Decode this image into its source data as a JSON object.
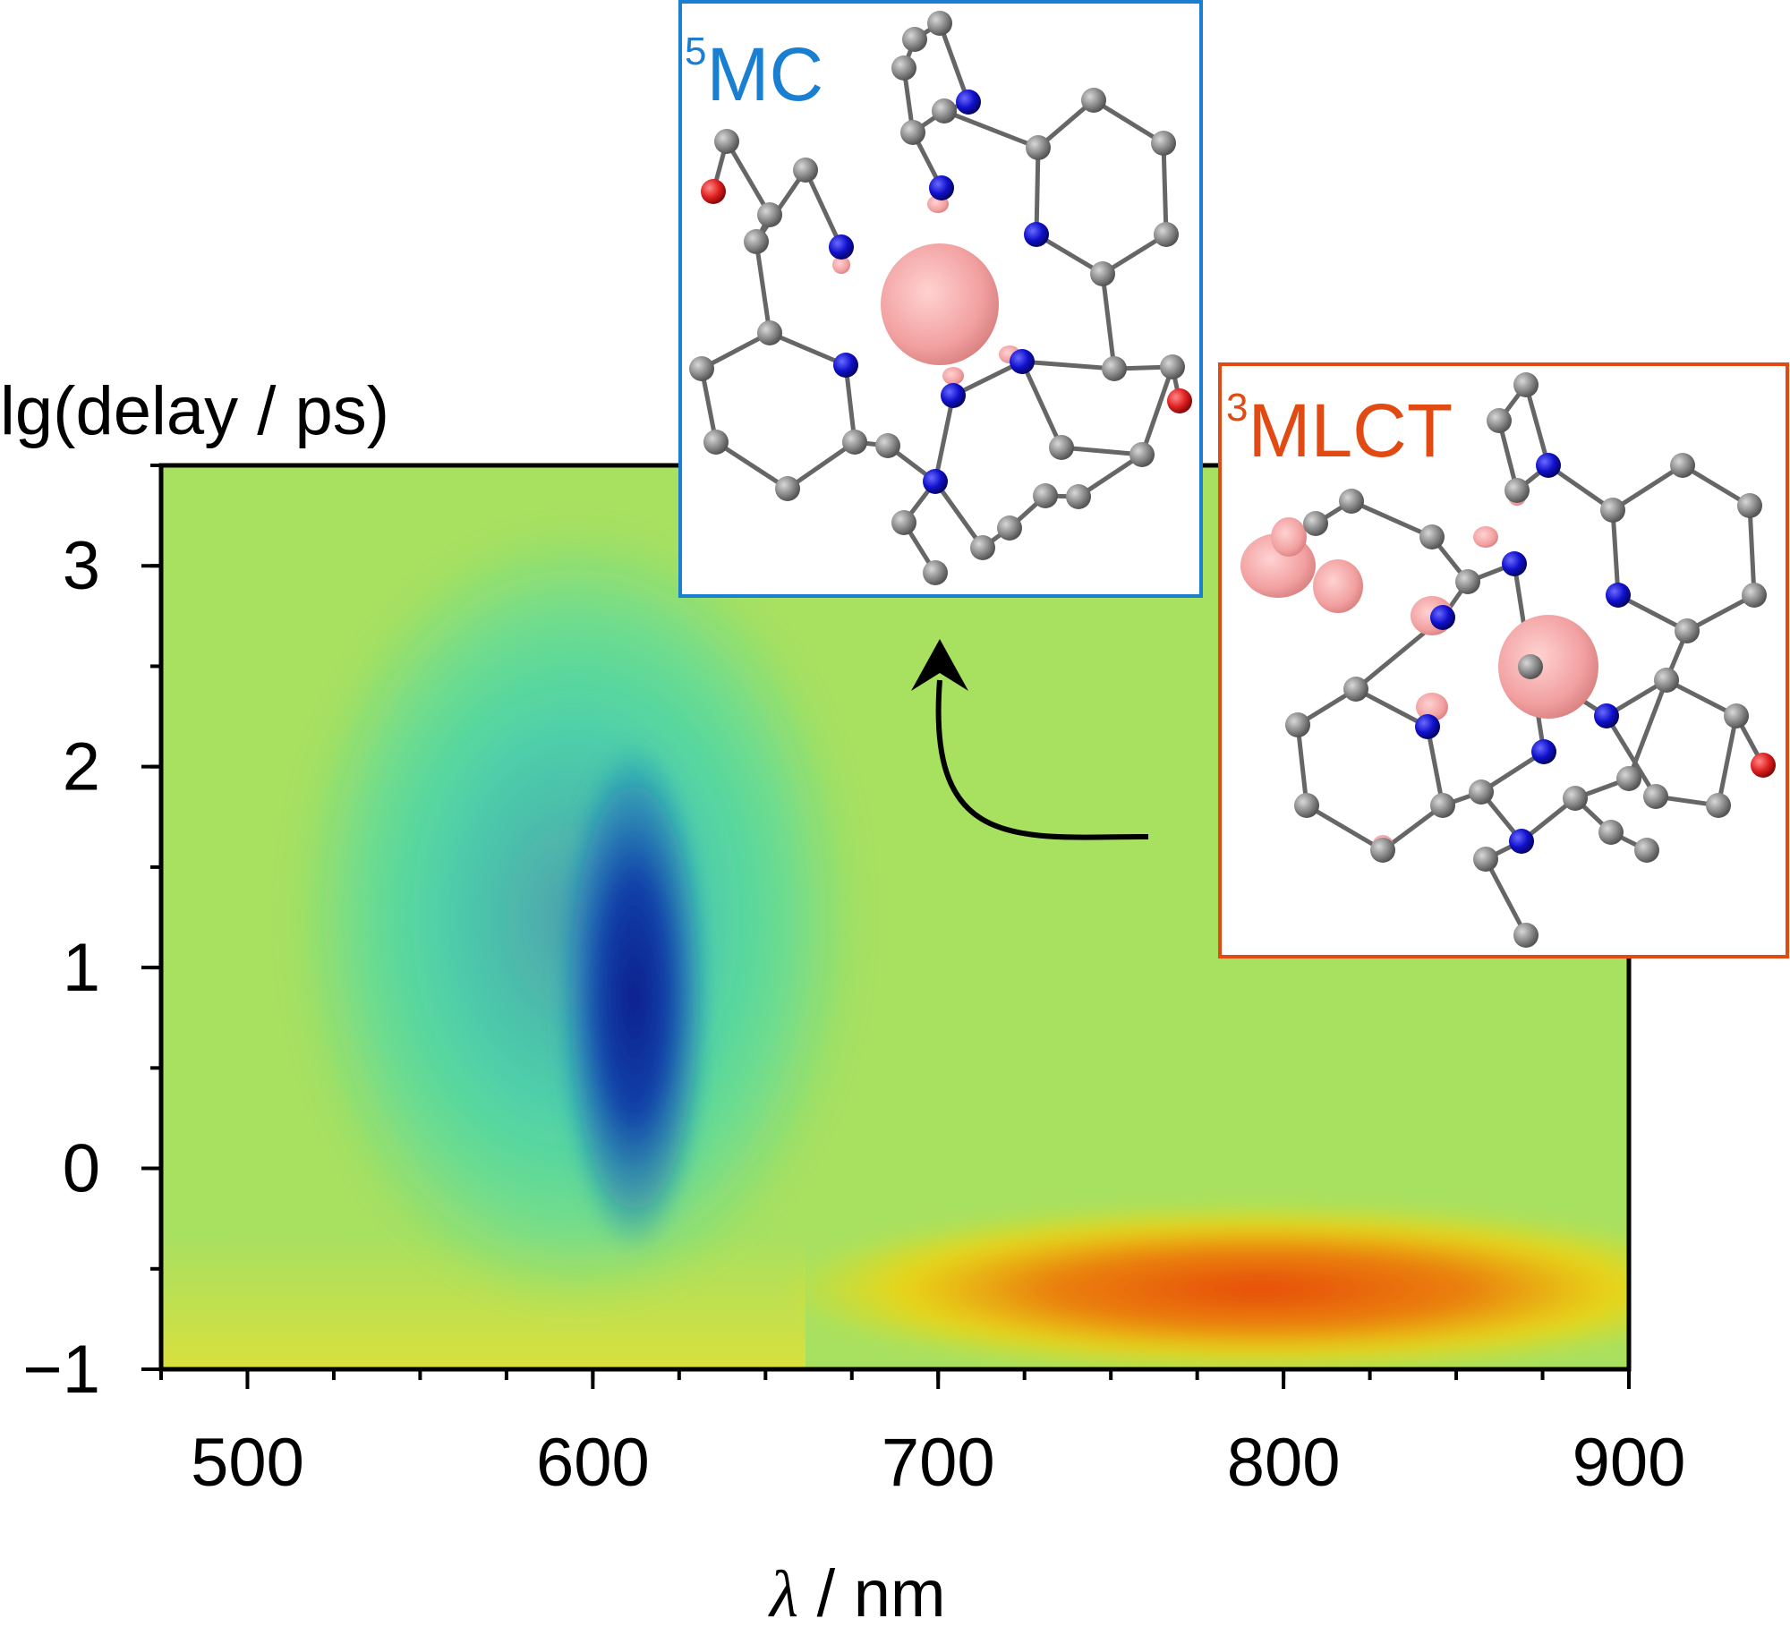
{
  "chart_data": {
    "type": "heatmap",
    "xlabel_symbol": "λ",
    "xlabel_rest": " / nm",
    "ylabel": "lg(delay / ps)",
    "xlim": [
      475,
      900
    ],
    "ylim": [
      -1,
      3.5
    ],
    "x_ticks": [
      500,
      600,
      700,
      800,
      900
    ],
    "y_ticks": [
      3,
      2,
      1,
      0,
      -1
    ],
    "y_tick_labels": [
      "3",
      "2",
      "1",
      "0",
      "−1"
    ],
    "x_minor_step": 25,
    "y_minor_step": 0.5,
    "features": [
      {
        "kind": "negative",
        "region": "broad bleach",
        "x_range": [
          530,
          660
        ],
        "y_range": [
          -0.5,
          3.0
        ],
        "level": 0.65
      },
      {
        "kind": "negative",
        "region": "bleach core",
        "x_center": 612,
        "y_range": [
          -0.3,
          2.0
        ],
        "level": 1.0
      },
      {
        "kind": "positive",
        "region": "early absorption",
        "x_range": [
          665,
          900
        ],
        "y_center": -0.6,
        "level": 0.9
      }
    ],
    "colors": {
      "background": "#a8e060",
      "negative_mid": "#14d8d8",
      "negative_deep": "#0a2a98",
      "positive_mid": "#ffd000",
      "positive_deep": "#ee3e00"
    }
  },
  "insets": {
    "mc": {
      "sup": "5",
      "label": "MC",
      "color": "#1a7fd0"
    },
    "mlct": {
      "sup": "3",
      "label": "MLCT",
      "color": "#e24a13"
    }
  },
  "atom_colors": {
    "carbon": "#8a8a8a",
    "nitrogen": "#1010cc",
    "oxygen": "#e02020",
    "spin_density": "#f2a0a0"
  }
}
